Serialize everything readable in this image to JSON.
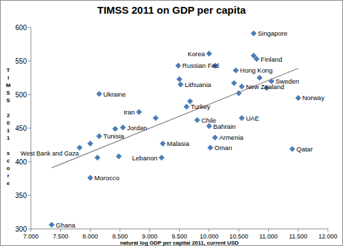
{
  "chart_data": {
    "type": "scatter",
    "title": "TIMSS 2011 on GDP per capita",
    "x_label": "natural log GDP per capital 2011, current USD",
    "y_label": "TIMSS 2011 score",
    "xlim": [
      7,
      12
    ],
    "ylim": [
      300,
      600
    ],
    "xticks": [
      {
        "value": 7,
        "label": "7.000"
      },
      {
        "value": 7.5,
        "label": "7.500"
      },
      {
        "value": 8,
        "label": "8.000"
      },
      {
        "value": 8.5,
        "label": "8.500"
      },
      {
        "value": 9,
        "label": "9.000"
      },
      {
        "value": 9.5,
        "label": "9.500"
      },
      {
        "value": 10,
        "label": "10.000"
      },
      {
        "value": 10.5,
        "label": "10.500"
      },
      {
        "value": 11,
        "label": "11.000"
      },
      {
        "value": 11.5,
        "label": "11.500"
      },
      {
        "value": 12,
        "label": "12.000"
      }
    ],
    "yticks": [
      300,
      350,
      400,
      450,
      500,
      550,
      600
    ],
    "grid": false,
    "series": [
      {
        "type": "scatter",
        "color": "#4a7ebb",
        "marker": "diamond",
        "x": [
          10.75,
          10.0,
          10.1,
          10.8,
          10.75,
          9.48,
          10.45,
          9.52,
          9.5,
          11.05,
          10.55,
          10.42,
          10.5,
          10.85,
          10.97,
          11.5,
          8.15,
          9.62,
          9.68,
          8.82,
          9.1,
          9.8,
          10.55,
          10.0,
          10.1,
          10.02,
          11.4,
          8.55,
          8.42,
          8.15,
          7.82,
          8.0,
          8.12,
          8.48,
          8.0,
          9.22,
          9.2,
          7.35
        ],
        "values": [
          591,
          561,
          543,
          553,
          558,
          543,
          536,
          515,
          523,
          520,
          512,
          517,
          502,
          525,
          510,
          495,
          501,
          482,
          490,
          474,
          465,
          462,
          465,
          453,
          436,
          421,
          419,
          451,
          449,
          438,
          421,
          427,
          406,
          408,
          376,
          427,
          406,
          306
        ],
        "labels": [
          "Singapore",
          "Korea",
          null,
          "Finland",
          null,
          "Russian Fed",
          "Hong Kong",
          "Lithuania",
          null,
          "Sweden",
          "New Zealand",
          null,
          null,
          null,
          null,
          "Norway",
          "Ukraine",
          "Turkey",
          null,
          "Iran",
          null,
          "Chile",
          "UAE",
          "Bahrain",
          "Armenia",
          "Oman",
          "Qatar",
          "Jordan",
          null,
          "Tunisia",
          "West Bank and Gaza",
          null,
          null,
          null,
          "Morocco",
          "Malasia",
          "Lebanon",
          "Ghana"
        ]
      },
      {
        "type": "line",
        "color": "#808080",
        "x": [
          7.35,
          11.5
        ],
        "values": [
          391,
          539
        ]
      }
    ]
  }
}
